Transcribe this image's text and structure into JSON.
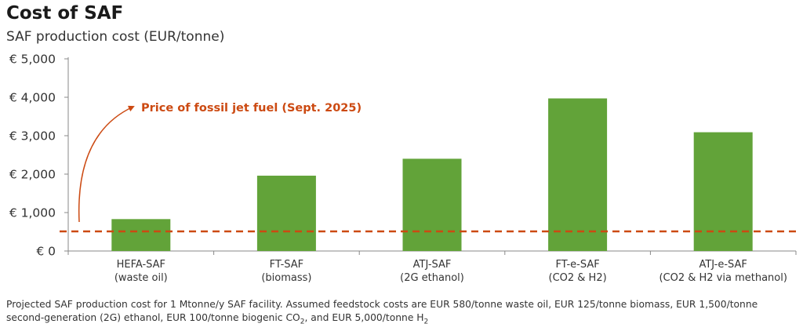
{
  "title": "Cost of SAF",
  "subtitle": "SAF production cost (EUR/tonne)",
  "colors": {
    "bar": "#62a339",
    "reference": "#cc4a12",
    "axis": "#888888"
  },
  "chart_data": {
    "type": "bar",
    "categories": [
      [
        "HEFA-SAF",
        "(waste oil)"
      ],
      [
        "FT-SAF",
        "(biomass)"
      ],
      [
        "ATJ-SAF",
        "(2G ethanol)"
      ],
      [
        "FT-e-SAF",
        "(CO2 & H2)"
      ],
      [
        "ATJ-e-SAF",
        "(CO2 & H2 via methanol)"
      ]
    ],
    "values": [
      830,
      1960,
      2400,
      3970,
      3090
    ],
    "ylim": [
      0,
      5000
    ],
    "yticks": [
      0,
      1000,
      2000,
      3000,
      4000,
      5000
    ],
    "ytick_labels": [
      "€ 0",
      "€ 1,000",
      "€ 2,000",
      "€ 3,000",
      "€ 4,000",
      "€ 5,000"
    ],
    "grid": false,
    "reference_line": {
      "value": 510,
      "label": "Price of fossil jet fuel (Sept. 2025)"
    }
  },
  "caption": {
    "part1": "Projected SAF production cost for 1 Mtonne/y SAF facility. Assumed feedstock costs are EUR 580/tonne waste oil, EUR 125/tonne biomass, EUR 1,500/tonne second-generation (2G) ethanol, EUR 100/tonne biogenic CO",
    "sub1": "2",
    "part2": ", and EUR 5,000/tonne H",
    "sub2": "2"
  }
}
